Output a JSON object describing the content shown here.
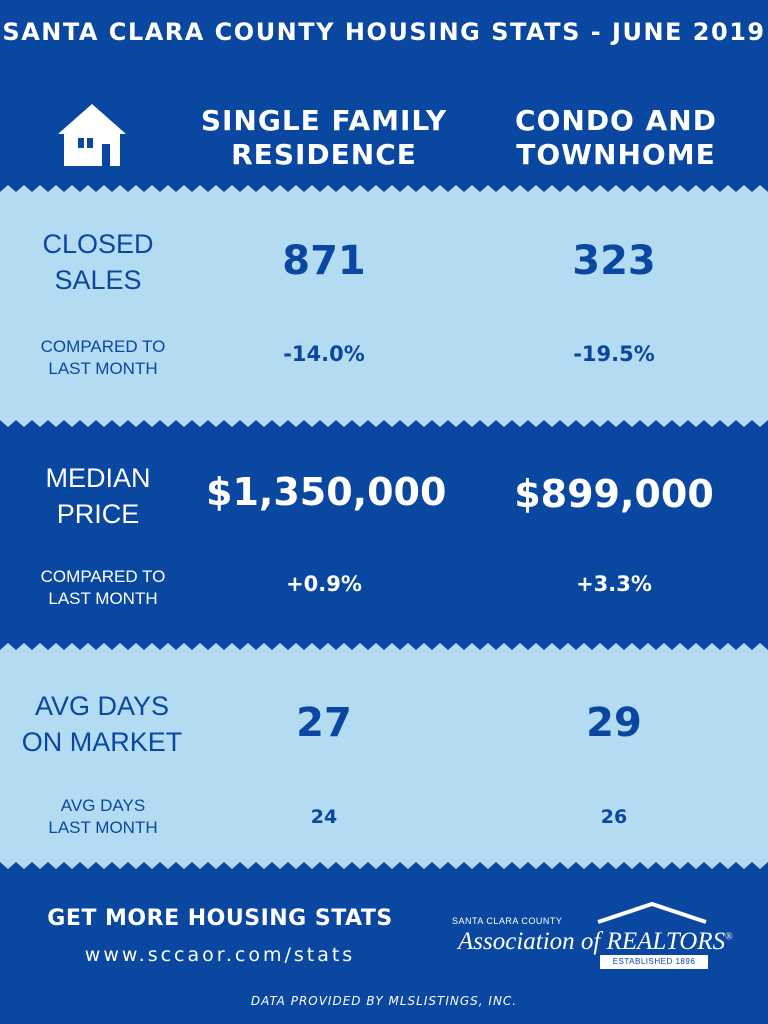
{
  "header": {
    "title": "SANTA CLARA COUNTY HOUSING STATS - JUNE 2019",
    "icon": "house-icon",
    "columns": [
      "SINGLE FAMILY\nRESIDENCE",
      "CONDO AND\nTOWNHOME"
    ]
  },
  "closed_sales": {
    "label": "CLOSED\nSALES",
    "sfr": "871",
    "condo": "323",
    "compare_label": "COMPARED TO\nLAST MONTH",
    "sfr_change": "-14.0%",
    "condo_change": "-19.5%"
  },
  "median_price": {
    "label": "MEDIAN\nPRICE",
    "sfr": "$1,350,000",
    "condo": "$899,000",
    "compare_label": "COMPARED TO\nLAST MONTH",
    "sfr_change": "+0.9%",
    "condo_change": "+3.3%"
  },
  "days_on_market": {
    "label": "AVG DAYS\nON MARKET",
    "sfr": "27",
    "condo": "29",
    "compare_label": "AVG DAYS\nLAST MONTH",
    "sfr_prev": "24",
    "condo_prev": "26"
  },
  "footer": {
    "cta": "GET MORE HOUSING STATS",
    "url": "www.sccaor.com/stats",
    "credit": "DATA PROVIDED BY MLSLISTINGS, INC."
  },
  "logo": {
    "county": "SANTA CLARA COUNTY",
    "name": "Association of REALTORS",
    "registered": "®",
    "established": "ESTABLISHED 1896"
  },
  "colors": {
    "dark_blue": "#0a47a0",
    "light_blue": "#b3dcf3",
    "white": "#ffffff"
  }
}
